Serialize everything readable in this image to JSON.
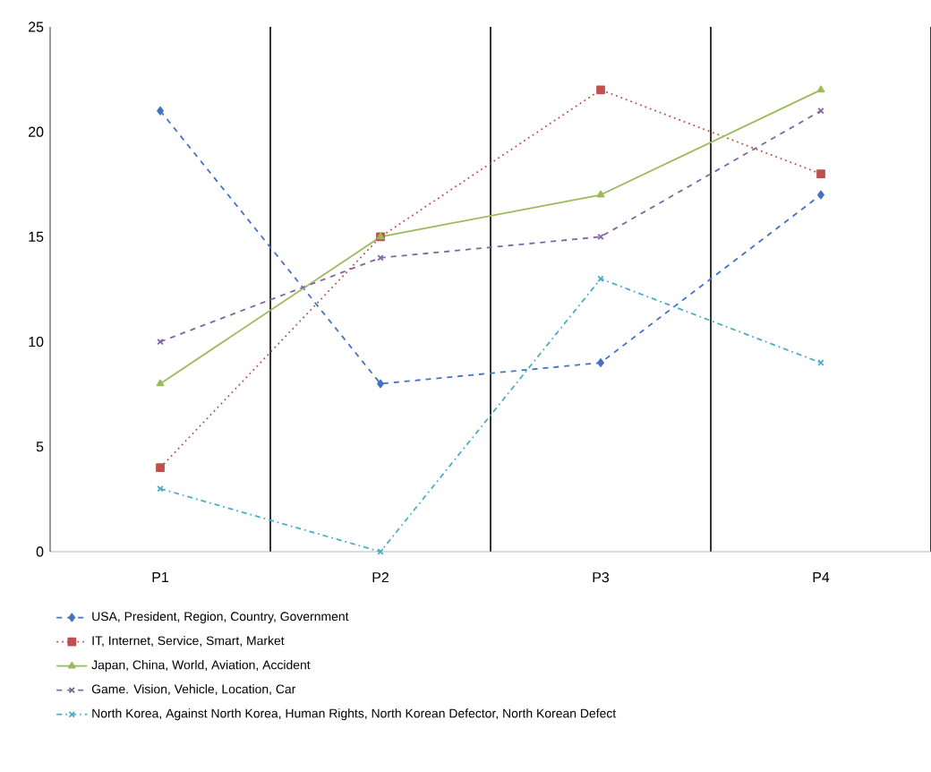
{
  "chart_data": {
    "type": "line",
    "categories": [
      "P1",
      "P2",
      "P3",
      "P4"
    ],
    "ylim": [
      0,
      25
    ],
    "yticks": [
      0,
      5,
      10,
      15,
      20,
      25
    ],
    "grid": "x",
    "legend": "bottom",
    "series": [
      {
        "name": "USA, President, Region, Country, Government",
        "color": "#4472c4",
        "marker": "diamond",
        "line_style": "dashed",
        "values": [
          21,
          8,
          9,
          17
        ]
      },
      {
        "name": "IT, Internet, Service, Smart, Market",
        "color": "#c0504d",
        "marker": "square",
        "line_style": "dotted",
        "values": [
          4,
          15,
          22,
          18
        ]
      },
      {
        "name": "Japan, China, World, Aviation, Accident",
        "color": "#9bbb59",
        "marker": "triangle",
        "line_style": "solid",
        "values": [
          8,
          15,
          17,
          22
        ]
      },
      {
        "name": "Game. Vision, Vehicle, Location, Car",
        "color": "#8064a2",
        "marker": "cross",
        "line_style": "dashed",
        "values": [
          10,
          14,
          15,
          21
        ]
      },
      {
        "name": "North Korea, Against North Korea, Human Rights, North Korean Defector, North Korean Defect",
        "color": "#4bacc6",
        "marker": "cross",
        "line_style": "dashdot",
        "values": [
          3,
          0,
          13,
          9
        ]
      }
    ]
  }
}
